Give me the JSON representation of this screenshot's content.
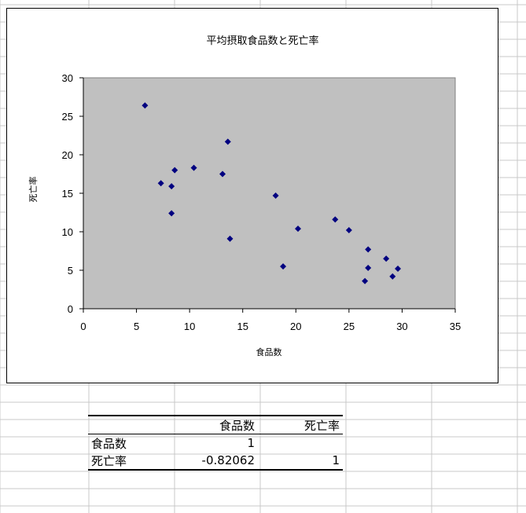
{
  "chart_data": {
    "type": "scatter",
    "title": "平均摂取食品数と死亡率",
    "xlabel": "食品数",
    "ylabel": "死亡率",
    "xlim": [
      0,
      35
    ],
    "ylim": [
      0,
      30
    ],
    "x_ticks": [
      "0",
      "5",
      "10",
      "15",
      "20",
      "25",
      "30",
      "35"
    ],
    "y_ticks": [
      "0",
      "5",
      "10",
      "15",
      "20",
      "25",
      "30"
    ],
    "grid": false,
    "plot_background": "#c0c0c0",
    "marker_color": "#000080",
    "points": [
      {
        "x": 5.8,
        "y": 26.4
      },
      {
        "x": 7.3,
        "y": 16.3
      },
      {
        "x": 8.3,
        "y": 15.9
      },
      {
        "x": 8.3,
        "y": 12.4
      },
      {
        "x": 8.6,
        "y": 18.0
      },
      {
        "x": 10.4,
        "y": 18.3
      },
      {
        "x": 13.1,
        "y": 17.5
      },
      {
        "x": 13.6,
        "y": 21.7
      },
      {
        "x": 13.8,
        "y": 9.1
      },
      {
        "x": 18.1,
        "y": 14.7
      },
      {
        "x": 18.8,
        "y": 5.5
      },
      {
        "x": 20.2,
        "y": 10.4
      },
      {
        "x": 23.7,
        "y": 11.6
      },
      {
        "x": 25.0,
        "y": 10.2
      },
      {
        "x": 26.5,
        "y": 3.6
      },
      {
        "x": 26.8,
        "y": 7.7
      },
      {
        "x": 26.8,
        "y": 5.3
      },
      {
        "x": 28.5,
        "y": 6.5
      },
      {
        "x": 29.1,
        "y": 4.2
      },
      {
        "x": 29.6,
        "y": 5.2
      }
    ]
  },
  "table": {
    "header": [
      "",
      "食品数",
      "死亡率"
    ],
    "rows": [
      {
        "label": "食品数",
        "v1": "1",
        "v2": ""
      },
      {
        "label": "死亡率",
        "v1": "-0.82062",
        "v2": "1"
      }
    ]
  }
}
